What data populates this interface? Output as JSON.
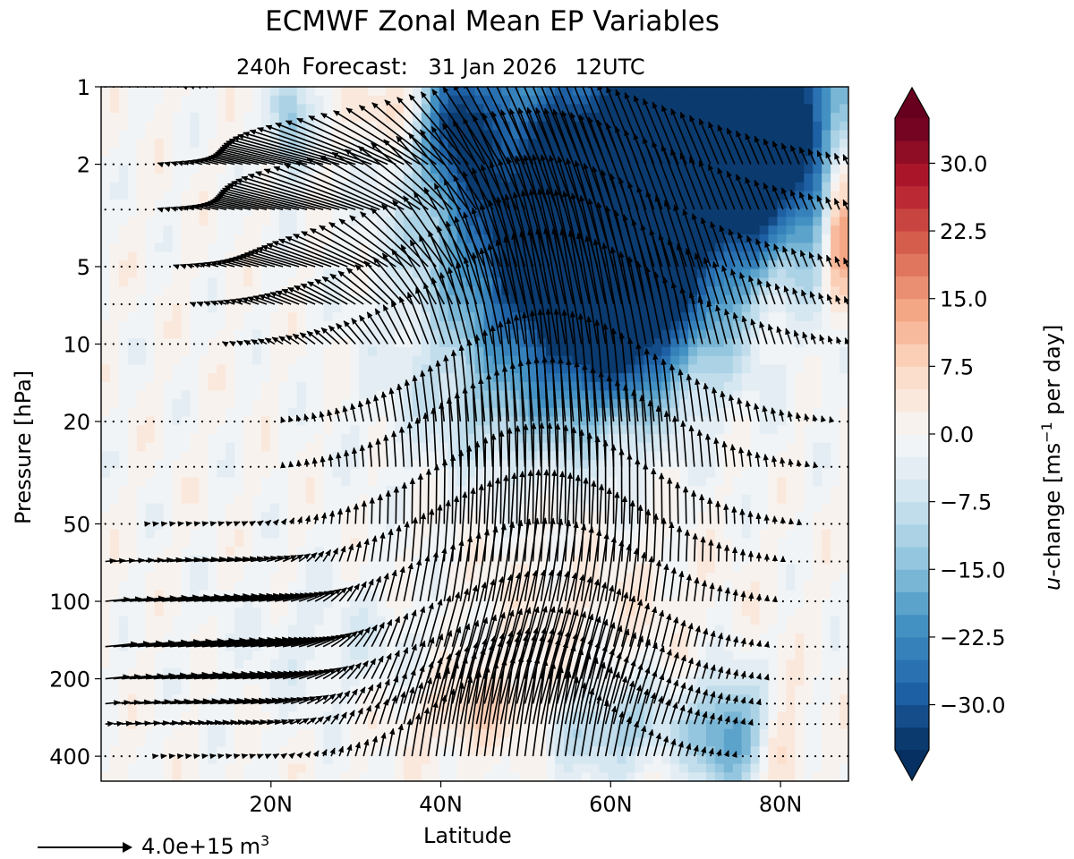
{
  "chart_data": {
    "type": "filled-contour-with-vector-field",
    "title": "ECMWF Zonal Mean EP Variables",
    "subtitle": {
      "lead": "240h",
      "label": "Forecast:",
      "date": "31 Jan 2026",
      "time": "12UTC"
    },
    "xlabel": "Latitude",
    "ylabel": "Pressure [hPa]",
    "xlim": [
      0,
      88
    ],
    "ylim": [
      500,
      1
    ],
    "yscale": "log",
    "xticks": [
      {
        "value": 20,
        "label": "20N"
      },
      {
        "value": 40,
        "label": "40N"
      },
      {
        "value": 60,
        "label": "60N"
      },
      {
        "value": 80,
        "label": "80N"
      }
    ],
    "yticks": [
      {
        "value": 1,
        "label": "1"
      },
      {
        "value": 2,
        "label": "2"
      },
      {
        "value": 5,
        "label": "5"
      },
      {
        "value": 10,
        "label": "10"
      },
      {
        "value": 20,
        "label": "20"
      },
      {
        "value": 50,
        "label": "50"
      },
      {
        "value": 100,
        "label": "100"
      },
      {
        "value": 200,
        "label": "200"
      },
      {
        "value": 400,
        "label": "400"
      }
    ],
    "vector_levels_hpa": [
      1,
      2,
      3,
      5,
      7,
      10,
      20,
      30,
      50,
      70,
      100,
      150,
      200,
      250,
      300,
      400
    ],
    "contour_field": {
      "name": "u-change",
      "units": "ms-1 per day",
      "range": [
        -35,
        35
      ],
      "features": [
        {
          "lat": 62,
          "p": 1.6,
          "value": -28,
          "dlat": 12,
          "dlogp": 0.35
        },
        {
          "lat": 78,
          "p": 1.5,
          "value": -35,
          "dlat": 9,
          "dlogp": 0.4
        },
        {
          "lat": 57,
          "p": 5.5,
          "value": -28,
          "dlat": 10,
          "dlogp": 0.28
        },
        {
          "lat": 61,
          "p": 9,
          "value": -20,
          "dlat": 6,
          "dlogp": 0.2
        },
        {
          "lat": 50,
          "p": 3,
          "value": -14,
          "dlat": 8,
          "dlogp": 0.35
        },
        {
          "lat": 42,
          "p": 1.3,
          "value": -24,
          "dlat": 3,
          "dlogp": 0.2
        },
        {
          "lat": 22,
          "p": 1.4,
          "value": -14,
          "dlat": 1.5,
          "dlogp": 0.15
        },
        {
          "lat": 87,
          "p": 3,
          "value": 30,
          "dlat": 1.5,
          "dlogp": 0.25
        },
        {
          "lat": 80,
          "p": 6,
          "value": 8,
          "dlat": 2.5,
          "dlogp": 0.2
        },
        {
          "lat": 35,
          "p": 1.2,
          "value": 10,
          "dlat": 3,
          "dlogp": 0.1
        },
        {
          "lat": 50,
          "p": 18,
          "value": -9,
          "dlat": 10,
          "dlogp": 0.2
        },
        {
          "lat": 45,
          "p": 260,
          "value": 8,
          "dlat": 7,
          "dlogp": 0.12
        },
        {
          "lat": 60,
          "p": 310,
          "value": -12,
          "dlat": 6,
          "dlogp": 0.12
        },
        {
          "lat": 74,
          "p": 330,
          "value": -20,
          "dlat": 3,
          "dlogp": 0.15
        },
        {
          "lat": 80,
          "p": 360,
          "value": 6,
          "dlat": 2,
          "dlogp": 0.15
        },
        {
          "lat": 55,
          "p": 100,
          "value": 3,
          "dlat": 12,
          "dlogp": 0.15
        },
        {
          "lat": 30,
          "p": 150,
          "value": -4,
          "dlat": 10,
          "dlogp": 0.2
        }
      ]
    },
    "vector_field": {
      "name": "EP flux",
      "reference": {
        "value": "4.0e+15",
        "units": "m",
        "exponent": "3"
      },
      "features": [
        {
          "lat": 55,
          "p": 14,
          "u": 0.0,
          "v": 1.0,
          "dlat": 11,
          "dlogp": 0.45
        },
        {
          "lat": 50,
          "p": 50,
          "u": 0.0,
          "v": 0.8,
          "dlat": 12,
          "dlogp": 0.32
        },
        {
          "lat": 50,
          "p": 200,
          "u": 0.3,
          "v": 0.8,
          "dlat": 12,
          "dlogp": 0.3
        },
        {
          "lat": 48,
          "p": 400,
          "u": 0.0,
          "v": 0.9,
          "dlat": 8,
          "dlogp": 0.12
        },
        {
          "lat": 55,
          "p": 2.5,
          "u": -0.5,
          "v": 1.1,
          "dlat": 16,
          "dlogp": 0.55
        },
        {
          "lat": 30,
          "p": 2.5,
          "u": -1.4,
          "v": 0.15,
          "dlat": 9,
          "dlogp": 0.3
        },
        {
          "lat": 12,
          "p": 140,
          "u": 1.0,
          "v": 0.1,
          "dlat": 9,
          "dlogp": 0.2
        }
      ]
    },
    "colorbar": {
      "ticks": [
        {
          "value": 30,
          "label": "30.0"
        },
        {
          "value": 22.5,
          "label": "22.5"
        },
        {
          "value": 15,
          "label": "15.0"
        },
        {
          "value": 7.5,
          "label": "7.5"
        },
        {
          "value": 0,
          "label": "0.0"
        },
        {
          "value": -7.5,
          "label": "−7.5"
        },
        {
          "value": -15,
          "label": "−15.0"
        },
        {
          "value": -22.5,
          "label": "−22.5"
        },
        {
          "value": -30,
          "label": "−30.0"
        }
      ],
      "label_italic": "u",
      "label_text": "-change [ms",
      "label_exp": "−1",
      "label_tail": " per day]",
      "levels": 28,
      "extend": "both"
    }
  }
}
